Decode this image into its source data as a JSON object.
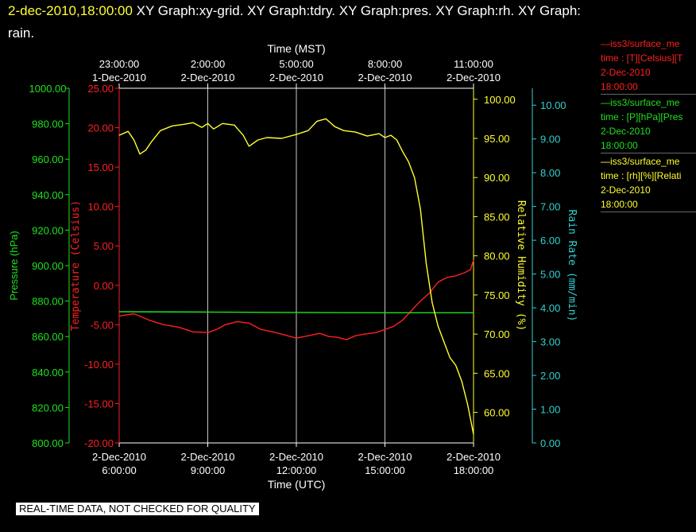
{
  "header": {
    "timestamp": "2-dec-2010,18:00:00",
    "graphs_line1": "XY Graph:xy-grid.  XY Graph:tdry.  XY Graph:pres.  XY Graph:rh.  XY Graph:",
    "graphs_line2": "rain."
  },
  "legend": [
    {
      "line1": "—iss3/surface_me",
      "line2": "time : [T][Celsius][T",
      "line3": "2-Dec-2010",
      "line4": "18:00:00",
      "color": "#ff2020"
    },
    {
      "line1": "—iss3/surface_me",
      "line2": "time : [P][hPa][Pres",
      "line3": "2-Dec-2010",
      "line4": "18:00:00",
      "color": "#20e020"
    },
    {
      "line1": "—iss3/surface_me",
      "line2": "time : [rh][%][Relati",
      "line3": "2-Dec-2010",
      "line4": "18:00:00",
      "color": "#ffff30"
    }
  ],
  "quality_note": "REAL-TIME DATA, NOT CHECKED FOR QUALITY",
  "chart_data": {
    "type": "line",
    "title": "",
    "grid": true,
    "xlabel_bottom": "Time (UTC)",
    "xlabel_top": "Time (MST)",
    "x_ticks_bottom": [
      {
        "date": "2-Dec-2010",
        "time": "6:00:00"
      },
      {
        "date": "2-Dec-2010",
        "time": "9:00:00"
      },
      {
        "date": "2-Dec-2010",
        "time": "12:00:00"
      },
      {
        "date": "2-Dec-2010",
        "time": "15:00:00"
      },
      {
        "date": "2-Dec-2010",
        "time": "18:00:00"
      }
    ],
    "x_ticks_top": [
      {
        "date": "1-Dec-2010",
        "time": "23:00:00"
      },
      {
        "date": "2-Dec-2010",
        "time": "2:00:00"
      },
      {
        "date": "2-Dec-2010",
        "time": "5:00:00"
      },
      {
        "date": "2-Dec-2010",
        "time": "8:00:00"
      },
      {
        "date": "2-Dec-2010",
        "time": "11:00:00"
      }
    ],
    "xlim_hours_utc": [
      6,
      18
    ],
    "axes": {
      "pressure": {
        "label": "Pressure (hPa)",
        "color": "#20e020",
        "range": [
          800,
          1000
        ],
        "ticks": [
          "800.00",
          "820.00",
          "840.00",
          "860.00",
          "880.00",
          "900.00",
          "920.00",
          "940.00",
          "960.00",
          "980.00",
          "1000.00"
        ]
      },
      "temperature": {
        "label": "Temperature (Celsius)",
        "color": "#ff2020",
        "range": [
          -20,
          25
        ],
        "ticks": [
          "-20.00",
          "-15.00",
          "-10.00",
          "-5.00",
          "0.00",
          "5.00",
          "10.00",
          "15.00",
          "20.00",
          "25.00"
        ]
      },
      "humidity": {
        "label": "Relative Humidity (%)",
        "color": "#ffff30",
        "range": [
          56.1,
          101.4
        ],
        "ticks": [
          "60.00",
          "65.00",
          "70.00",
          "75.00",
          "80.00",
          "85.00",
          "90.00",
          "95.00",
          "100.00"
        ]
      },
      "rain": {
        "label": "Rain Rate (mm/min)",
        "color": "#30d0d0",
        "range": [
          0,
          10.5
        ],
        "ticks": [
          "0.00",
          "1.00",
          "2.00",
          "3.00",
          "4.00",
          "5.00",
          "6.00",
          "7.00",
          "8.00",
          "9.00",
          "10.00"
        ]
      }
    },
    "series": [
      {
        "name": "T",
        "axis": "temperature",
        "color": "#ff2020",
        "points": [
          [
            6.0,
            -3.9
          ],
          [
            6.5,
            -3.6
          ],
          [
            7.0,
            -4.4
          ],
          [
            7.5,
            -5.0
          ],
          [
            8.0,
            -5.3
          ],
          [
            8.5,
            -5.9
          ],
          [
            9.0,
            -6.0
          ],
          [
            9.3,
            -5.6
          ],
          [
            9.6,
            -5.0
          ],
          [
            10.0,
            -4.6
          ],
          [
            10.4,
            -4.8
          ],
          [
            10.8,
            -5.6
          ],
          [
            11.2,
            -5.9
          ],
          [
            11.6,
            -6.3
          ],
          [
            12.0,
            -6.7
          ],
          [
            12.4,
            -6.4
          ],
          [
            12.8,
            -6.1
          ],
          [
            13.1,
            -6.5
          ],
          [
            13.4,
            -6.6
          ],
          [
            13.7,
            -6.9
          ],
          [
            14.0,
            -6.4
          ],
          [
            14.3,
            -6.2
          ],
          [
            14.7,
            -6.0
          ],
          [
            15.0,
            -5.6
          ],
          [
            15.3,
            -5.2
          ],
          [
            15.6,
            -4.4
          ],
          [
            15.9,
            -3.2
          ],
          [
            16.2,
            -2.0
          ],
          [
            16.5,
            -1.0
          ],
          [
            16.8,
            0.4
          ],
          [
            17.1,
            1.0
          ],
          [
            17.4,
            1.2
          ],
          [
            17.7,
            1.6
          ],
          [
            17.9,
            2.0
          ],
          [
            18.0,
            3.2
          ]
        ]
      },
      {
        "name": "P",
        "axis": "pressure",
        "color": "#20e020",
        "points": [
          [
            6.0,
            874.0
          ],
          [
            9.0,
            873.8
          ],
          [
            12.0,
            873.6
          ],
          [
            15.0,
            873.4
          ],
          [
            18.0,
            873.4
          ]
        ]
      },
      {
        "name": "rh",
        "axis": "humidity",
        "color": "#ffff30",
        "points": [
          [
            6.0,
            95.4
          ],
          [
            6.3,
            95.9
          ],
          [
            6.5,
            94.8
          ],
          [
            6.7,
            93.0
          ],
          [
            6.9,
            93.5
          ],
          [
            7.1,
            94.6
          ],
          [
            7.4,
            96.0
          ],
          [
            7.8,
            96.6
          ],
          [
            8.2,
            96.8
          ],
          [
            8.5,
            97.0
          ],
          [
            8.8,
            96.4
          ],
          [
            9.0,
            96.9
          ],
          [
            9.2,
            96.2
          ],
          [
            9.5,
            96.9
          ],
          [
            9.9,
            96.7
          ],
          [
            10.2,
            95.4
          ],
          [
            10.4,
            94.0
          ],
          [
            10.7,
            94.8
          ],
          [
            11.0,
            95.1
          ],
          [
            11.5,
            95.0
          ],
          [
            12.0,
            95.5
          ],
          [
            12.4,
            96.0
          ],
          [
            12.7,
            97.2
          ],
          [
            13.0,
            97.5
          ],
          [
            13.3,
            96.5
          ],
          [
            13.6,
            96.0
          ],
          [
            14.0,
            95.8
          ],
          [
            14.4,
            95.3
          ],
          [
            14.8,
            95.6
          ],
          [
            15.0,
            95.1
          ],
          [
            15.2,
            95.4
          ],
          [
            15.4,
            94.8
          ],
          [
            15.6,
            93.3
          ],
          [
            15.8,
            92.0
          ],
          [
            16.0,
            90.0
          ],
          [
            16.2,
            86.0
          ],
          [
            16.4,
            79.0
          ],
          [
            16.6,
            74.0
          ],
          [
            16.8,
            71.0
          ],
          [
            17.0,
            69.0
          ],
          [
            17.2,
            67.0
          ],
          [
            17.4,
            66.0
          ],
          [
            17.6,
            64.0
          ],
          [
            17.8,
            61.0
          ],
          [
            18.0,
            57.2
          ]
        ]
      }
    ]
  }
}
